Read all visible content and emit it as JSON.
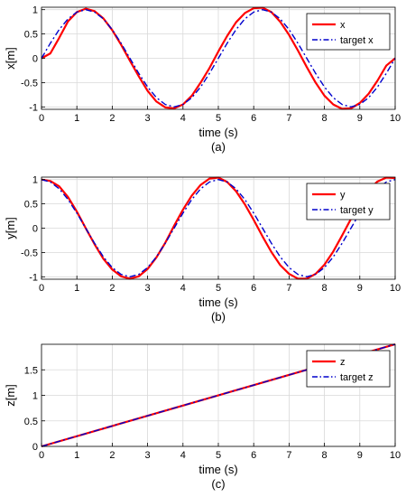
{
  "colors": {
    "actual": "#ff0000",
    "target": "#0000cc",
    "grid": "#d9d9d9",
    "axis": "#000000",
    "background": "#ffffff"
  },
  "chart_data": [
    {
      "type": "line",
      "panel_label": "(a)",
      "xlabel": "time (s)",
      "ylabel": "x[m]",
      "xlim": [
        0,
        10
      ],
      "ylim": [
        -1.05,
        1.05
      ],
      "xticks": [
        0,
        1,
        2,
        3,
        4,
        5,
        6,
        7,
        8,
        9,
        10
      ],
      "yticks": [
        -1,
        -0.5,
        0,
        0.5,
        1
      ],
      "ytick_labels": [
        "-1",
        "-0.5",
        "0",
        "0.5",
        "1"
      ],
      "grid": true,
      "legend_position": "top-right",
      "x": [
        0,
        0.25,
        0.5,
        0.75,
        1,
        1.25,
        1.5,
        1.75,
        2,
        2.25,
        2.5,
        2.75,
        3,
        3.25,
        3.5,
        3.75,
        4,
        4.25,
        4.5,
        4.75,
        5,
        5.25,
        5.5,
        5.75,
        6,
        6.25,
        6.5,
        6.75,
        7,
        7.25,
        7.5,
        7.75,
        8,
        8.25,
        8.5,
        8.75,
        9,
        9.25,
        9.5,
        9.75,
        10
      ],
      "series": [
        {
          "name": "x",
          "style": "solid",
          "color": "#ff0000",
          "values": [
            0.0,
            0.1,
            0.42,
            0.76,
            0.95,
            1.02,
            0.97,
            0.82,
            0.58,
            0.28,
            -0.05,
            -0.37,
            -0.67,
            -0.89,
            -1.01,
            -1.03,
            -0.95,
            -0.77,
            -0.5,
            -0.2,
            0.14,
            0.46,
            0.74,
            0.93,
            1.03,
            1.04,
            0.95,
            0.75,
            0.48,
            0.16,
            -0.18,
            -0.5,
            -0.77,
            -0.95,
            -1.04,
            -1.03,
            -0.92,
            -0.73,
            -0.46,
            -0.15,
            0.0
          ]
        },
        {
          "name": "target x",
          "style": "dashdot",
          "color": "#0000cc",
          "values": [
            0.0,
            0.31,
            0.59,
            0.81,
            0.95,
            1.0,
            0.95,
            0.81,
            0.59,
            0.31,
            0.0,
            -0.31,
            -0.59,
            -0.81,
            -0.95,
            -1.0,
            -0.95,
            -0.81,
            -0.59,
            -0.31,
            0.0,
            0.31,
            0.59,
            0.81,
            0.95,
            1.0,
            0.95,
            0.81,
            0.59,
            0.31,
            0.0,
            -0.31,
            -0.59,
            -0.81,
            -0.95,
            -1.0,
            -0.95,
            -0.81,
            -0.59,
            -0.31,
            0.0
          ]
        }
      ]
    },
    {
      "type": "line",
      "panel_label": "(b)",
      "xlabel": "time (s)",
      "ylabel": "y[m]",
      "xlim": [
        0,
        10
      ],
      "ylim": [
        -1.05,
        1.05
      ],
      "xticks": [
        0,
        1,
        2,
        3,
        4,
        5,
        6,
        7,
        8,
        9,
        10
      ],
      "yticks": [
        -1,
        -0.5,
        0,
        0.5,
        1
      ],
      "ytick_labels": [
        "-1",
        "-0.5",
        "0",
        "0.5",
        "1"
      ],
      "grid": true,
      "legend_position": "top-right",
      "x": [
        0,
        0.25,
        0.5,
        0.75,
        1,
        1.25,
        1.5,
        1.75,
        2,
        2.25,
        2.5,
        2.75,
        3,
        3.25,
        3.5,
        3.75,
        4,
        4.25,
        4.5,
        4.75,
        5,
        5.25,
        5.5,
        5.75,
        6,
        6.25,
        6.5,
        6.75,
        7,
        7.25,
        7.5,
        7.75,
        8,
        8.25,
        8.5,
        8.75,
        9,
        9.25,
        9.5,
        9.75,
        10
      ],
      "series": [
        {
          "name": "y",
          "style": "solid",
          "color": "#ff0000",
          "values": [
            1.0,
            0.97,
            0.86,
            0.64,
            0.34,
            0.0,
            -0.33,
            -0.63,
            -0.85,
            -0.99,
            -1.04,
            -0.99,
            -0.84,
            -0.6,
            -0.3,
            0.05,
            0.38,
            0.67,
            0.89,
            1.02,
            1.04,
            0.95,
            0.76,
            0.49,
            0.17,
            -0.17,
            -0.49,
            -0.76,
            -0.94,
            -1.04,
            -1.04,
            -0.94,
            -0.75,
            -0.48,
            -0.15,
            0.19,
            0.52,
            0.78,
            0.96,
            1.04,
            1.03
          ]
        },
        {
          "name": "target y",
          "style": "dashdot",
          "color": "#0000cc",
          "values": [
            1.0,
            0.95,
            0.81,
            0.59,
            0.31,
            0.0,
            -0.31,
            -0.59,
            -0.81,
            -0.95,
            -1.0,
            -0.95,
            -0.81,
            -0.59,
            -0.31,
            0.0,
            0.31,
            0.59,
            0.81,
            0.95,
            1.0,
            0.95,
            0.81,
            0.59,
            0.31,
            0.0,
            -0.31,
            -0.59,
            -0.81,
            -0.95,
            -1.0,
            -0.95,
            -0.81,
            -0.59,
            -0.31,
            0.0,
            0.31,
            0.59,
            0.81,
            0.95,
            1.0
          ]
        }
      ]
    },
    {
      "type": "line",
      "panel_label": "(c)",
      "xlabel": "time (s)",
      "ylabel": "z[m]",
      "xlim": [
        0,
        10
      ],
      "ylim": [
        0,
        2
      ],
      "xticks": [
        0,
        1,
        2,
        3,
        4,
        5,
        6,
        7,
        8,
        9,
        10
      ],
      "yticks": [
        0,
        0.5,
        1,
        1.5
      ],
      "ytick_labels": [
        "0",
        "0.5",
        "1",
        "1.5"
      ],
      "grid": true,
      "legend_position": "top-right",
      "x": [
        0,
        2,
        4,
        6,
        8,
        10
      ],
      "series": [
        {
          "name": "z",
          "style": "solid",
          "color": "#ff0000",
          "values": [
            0.0,
            0.4,
            0.8,
            1.2,
            1.6,
            2.0
          ]
        },
        {
          "name": "target z",
          "style": "dashdot",
          "color": "#0000cc",
          "values": [
            0.0,
            0.4,
            0.8,
            1.2,
            1.6,
            2.0
          ]
        }
      ]
    }
  ]
}
